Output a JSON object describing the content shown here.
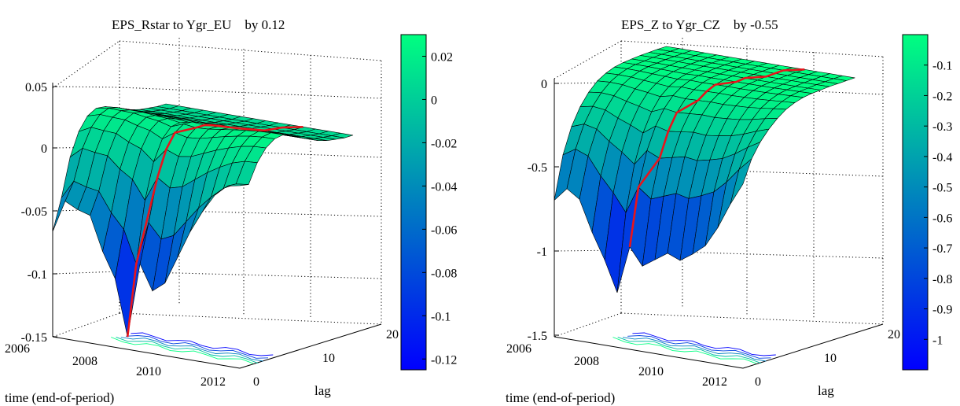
{
  "chart_data": [
    {
      "type": "surface3d",
      "title": "EPS_Rstar to Ygr_EU    by 0.12",
      "xlabel": "time (end-of-period)",
      "ylabel": "lag",
      "x_ticks": [
        "2006",
        "2008",
        "2010",
        "2012"
      ],
      "y_ticks": [
        "0",
        "10",
        "20"
      ],
      "z_ticks": [
        "0.05",
        "0",
        "-0.05",
        "-0.1",
        "-0.15"
      ],
      "zlim": [
        -0.15,
        0.05
      ],
      "colorbar_ticks": [
        "0.02",
        "0",
        "-0.02",
        "-0.04",
        "-0.06",
        "-0.08",
        "-0.1",
        "-0.12"
      ],
      "colorbar_range": [
        -0.125,
        0.03
      ],
      "colormap": [
        "#0000ff",
        "#00ff80"
      ],
      "highlight_color": "#e8141b",
      "lag_profile": [
        -0.064,
        -0.04,
        -0.01,
        0.008,
        0.018,
        0.022,
        0.021,
        0.018,
        0.015,
        0.012,
        0.01,
        0.009,
        0.008,
        0.008
      ],
      "time_start_value": [
        -0.066,
        -0.04,
        -0.045,
        -0.048,
        -0.075,
        -0.095,
        -0.14,
        -0.08,
        -0.1,
        -0.092,
        -0.07,
        -0.048,
        -0.03,
        -0.015,
        -0.006,
        -0.004
      ]
    },
    {
      "type": "surface3d",
      "title": "EPS_Z to Ygr_CZ    by -0.55",
      "xlabel": "time (end-of-period)",
      "ylabel": "lag",
      "x_ticks": [
        "2006",
        "2008",
        "2010",
        "2012"
      ],
      "y_ticks": [
        "0",
        "10",
        "20"
      ],
      "z_ticks": [
        "0",
        "-0.5",
        "-1",
        "-1.5"
      ],
      "zlim": [
        -1.5,
        0.1
      ],
      "colorbar_ticks": [
        "-0.1",
        "-0.2",
        "-0.3",
        "-0.4",
        "-0.5",
        "-0.6",
        "-0.7",
        "-0.8",
        "-0.9",
        "-1"
      ],
      "colorbar_range": [
        -1.1,
        0.0
      ],
      "colormap": [
        "#0000ff",
        "#00ff80"
      ],
      "highlight_color": "#e8141b",
      "lag_profile": [
        -0.7,
        -0.45,
        -0.3,
        -0.2,
        -0.13,
        -0.08,
        -0.05,
        -0.03,
        -0.02,
        -0.015,
        -0.01,
        -0.008,
        -0.006,
        -0.005
      ],
      "time_start_value": [
        -0.7,
        -0.62,
        -0.67,
        -0.85,
        -1.0,
        -1.18,
        -0.9,
        -1.0,
        -0.95,
        -0.9,
        -0.93,
        -0.88,
        -0.82,
        -0.7,
        -0.55,
        -0.42
      ]
    }
  ]
}
